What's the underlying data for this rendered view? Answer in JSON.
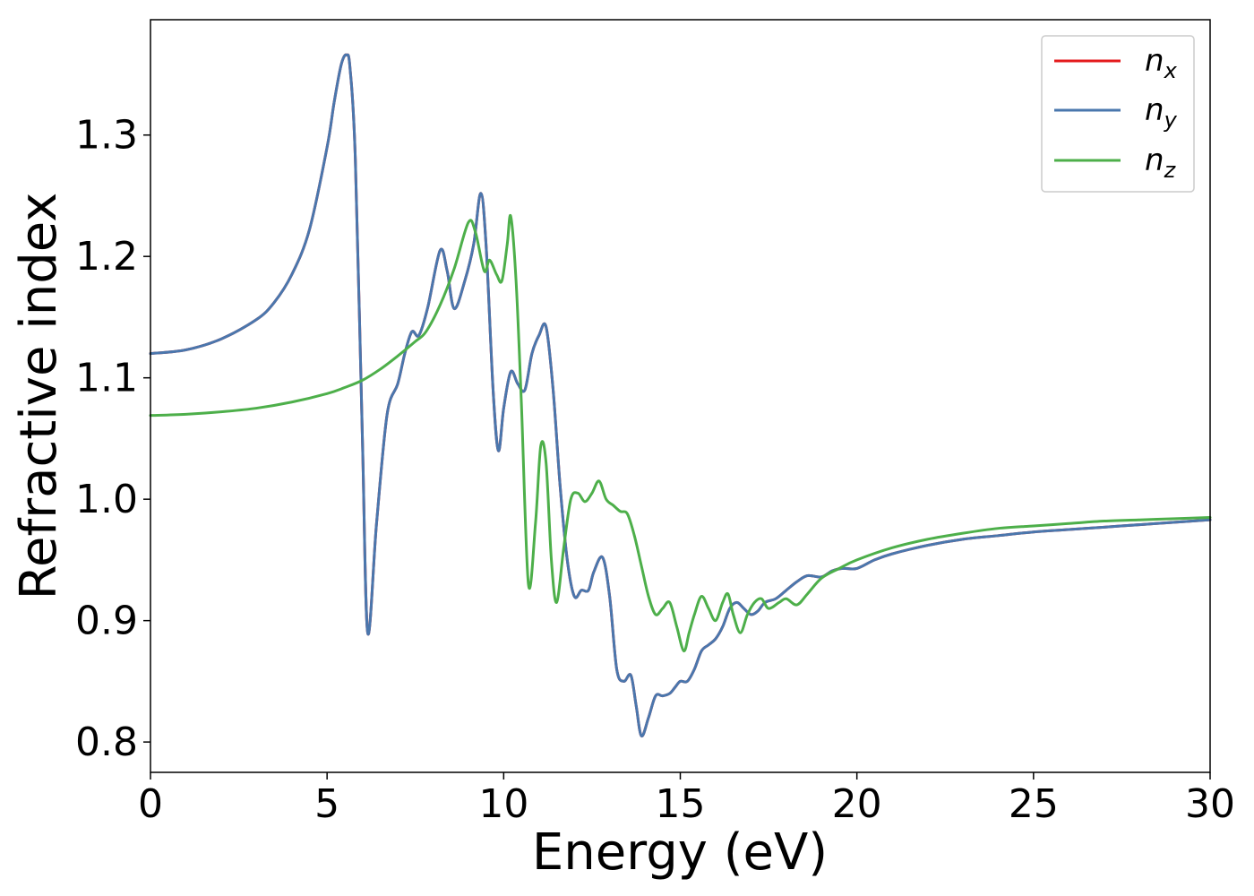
{
  "chart_data": {
    "type": "line",
    "xlabel": "Energy (eV)",
    "ylabel": "Refractive index",
    "xlim": [
      0,
      30
    ],
    "ylim": [
      0.775,
      1.395
    ],
    "xticks": [
      0,
      5,
      10,
      15,
      20,
      25,
      30
    ],
    "yticks": [
      0.8,
      0.9,
      1.0,
      1.1,
      1.2,
      1.3
    ],
    "xtick_labels": [
      "0",
      "5",
      "10",
      "15",
      "20",
      "25",
      "30"
    ],
    "ytick_labels": [
      "0.8",
      "0.9",
      "1.0",
      "1.1",
      "1.2",
      "1.3"
    ],
    "grid": false,
    "legend": "top-right",
    "series": [
      {
        "name_base": "n",
        "name_sub": "x",
        "color": "#e41a1c",
        "x": [
          0,
          1,
          2,
          3,
          3.5,
          4,
          4.5,
          5,
          5.2,
          5.4,
          5.55,
          5.65,
          5.8,
          6.0,
          6.15,
          6.4,
          6.7,
          7.0,
          7.2,
          7.4,
          7.6,
          7.85,
          8.2,
          8.4,
          8.6,
          8.9,
          9.15,
          9.35,
          9.5,
          9.7,
          9.85,
          10.0,
          10.2,
          10.4,
          10.6,
          10.8,
          11.0,
          11.2,
          11.4,
          11.6,
          11.8,
          12.0,
          12.2,
          12.4,
          12.55,
          12.8,
          13.0,
          13.2,
          13.4,
          13.6,
          13.75,
          13.9,
          14.1,
          14.3,
          14.5,
          14.7,
          14.85,
          15.0,
          15.2,
          15.4,
          15.6,
          15.8,
          16.0,
          16.2,
          16.4,
          16.6,
          16.8,
          17.0,
          17.2,
          17.4,
          17.7,
          18.0,
          18.3,
          18.6,
          19.0,
          19.3,
          19.6,
          20.0,
          20.5,
          21,
          22,
          23,
          24,
          25,
          26,
          27,
          28,
          29,
          30
        ],
        "y": [
          1.12,
          1.123,
          1.132,
          1.148,
          1.162,
          1.185,
          1.222,
          1.29,
          1.327,
          1.358,
          1.366,
          1.355,
          1.28,
          1.05,
          0.89,
          0.98,
          1.07,
          1.095,
          1.12,
          1.138,
          1.135,
          1.158,
          1.205,
          1.188,
          1.157,
          1.18,
          1.21,
          1.252,
          1.21,
          1.09,
          1.04,
          1.075,
          1.105,
          1.095,
          1.09,
          1.12,
          1.135,
          1.142,
          1.09,
          1.01,
          0.95,
          0.92,
          0.925,
          0.925,
          0.94,
          0.952,
          0.92,
          0.86,
          0.85,
          0.855,
          0.83,
          0.805,
          0.82,
          0.838,
          0.838,
          0.84,
          0.845,
          0.85,
          0.85,
          0.86,
          0.875,
          0.88,
          0.885,
          0.895,
          0.91,
          0.915,
          0.91,
          0.905,
          0.908,
          0.915,
          0.918,
          0.925,
          0.932,
          0.937,
          0.936,
          0.941,
          0.943,
          0.943,
          0.95,
          0.955,
          0.962,
          0.967,
          0.97,
          0.973,
          0.975,
          0.977,
          0.979,
          0.981,
          0.983
        ]
      },
      {
        "name_base": "n",
        "name_sub": "y",
        "color": "#4a77ad",
        "x": [
          0,
          1,
          2,
          3,
          3.5,
          4,
          4.5,
          5,
          5.2,
          5.4,
          5.55,
          5.65,
          5.8,
          6.0,
          6.15,
          6.4,
          6.7,
          7.0,
          7.2,
          7.4,
          7.6,
          7.85,
          8.2,
          8.4,
          8.6,
          8.9,
          9.15,
          9.35,
          9.5,
          9.7,
          9.85,
          10.0,
          10.2,
          10.4,
          10.6,
          10.8,
          11.0,
          11.2,
          11.4,
          11.6,
          11.8,
          12.0,
          12.2,
          12.4,
          12.55,
          12.8,
          13.0,
          13.2,
          13.4,
          13.6,
          13.75,
          13.9,
          14.1,
          14.3,
          14.5,
          14.7,
          14.85,
          15.0,
          15.2,
          15.4,
          15.6,
          15.8,
          16.0,
          16.2,
          16.4,
          16.6,
          16.8,
          17.0,
          17.2,
          17.4,
          17.7,
          18.0,
          18.3,
          18.6,
          19.0,
          19.3,
          19.6,
          20.0,
          20.5,
          21,
          22,
          23,
          24,
          25,
          26,
          27,
          28,
          29,
          30
        ],
        "y": [
          1.12,
          1.123,
          1.132,
          1.148,
          1.162,
          1.185,
          1.222,
          1.29,
          1.327,
          1.358,
          1.366,
          1.355,
          1.28,
          1.05,
          0.89,
          0.98,
          1.07,
          1.095,
          1.12,
          1.138,
          1.135,
          1.158,
          1.205,
          1.188,
          1.157,
          1.18,
          1.21,
          1.252,
          1.21,
          1.09,
          1.04,
          1.075,
          1.105,
          1.095,
          1.09,
          1.12,
          1.135,
          1.142,
          1.09,
          1.01,
          0.95,
          0.92,
          0.925,
          0.925,
          0.94,
          0.952,
          0.92,
          0.86,
          0.85,
          0.855,
          0.83,
          0.805,
          0.82,
          0.838,
          0.838,
          0.84,
          0.845,
          0.85,
          0.85,
          0.86,
          0.875,
          0.88,
          0.885,
          0.895,
          0.91,
          0.915,
          0.91,
          0.905,
          0.908,
          0.915,
          0.918,
          0.925,
          0.932,
          0.937,
          0.936,
          0.941,
          0.943,
          0.943,
          0.95,
          0.955,
          0.962,
          0.967,
          0.97,
          0.973,
          0.975,
          0.977,
          0.979,
          0.981,
          0.983
        ]
      },
      {
        "name_base": "n",
        "name_sub": "z",
        "color": "#4daf4a",
        "x": [
          0,
          1,
          2,
          3,
          4,
          5,
          5.5,
          6,
          6.5,
          7,
          7.5,
          7.8,
          8.2,
          8.6,
          9.0,
          9.2,
          9.45,
          9.6,
          9.8,
          9.95,
          10.1,
          10.2,
          10.35,
          10.5,
          10.7,
          10.9,
          11.05,
          11.2,
          11.35,
          11.5,
          11.7,
          11.9,
          12.1,
          12.3,
          12.5,
          12.7,
          12.9,
          13.1,
          13.3,
          13.5,
          13.7,
          13.9,
          14.1,
          14.3,
          14.5,
          14.7,
          14.9,
          15.1,
          15.25,
          15.4,
          15.6,
          15.8,
          16.0,
          16.2,
          16.35,
          16.5,
          16.7,
          16.9,
          17.1,
          17.3,
          17.5,
          17.8,
          18.0,
          18.3,
          18.6,
          19.0,
          19.5,
          20,
          21,
          22,
          23,
          24,
          25,
          26,
          27,
          28,
          29,
          30
        ],
        "y": [
          1.069,
          1.07,
          1.072,
          1.075,
          1.08,
          1.087,
          1.092,
          1.098,
          1.107,
          1.118,
          1.13,
          1.138,
          1.16,
          1.19,
          1.228,
          1.22,
          1.188,
          1.197,
          1.185,
          1.18,
          1.21,
          1.233,
          1.18,
          1.08,
          0.93,
          0.98,
          1.044,
          1.03,
          0.95,
          0.915,
          0.96,
          1.0,
          1.005,
          0.998,
          1.005,
          1.015,
          1.0,
          0.995,
          0.99,
          0.988,
          0.97,
          0.945,
          0.92,
          0.905,
          0.91,
          0.915,
          0.895,
          0.875,
          0.89,
          0.905,
          0.92,
          0.91,
          0.9,
          0.915,
          0.922,
          0.905,
          0.89,
          0.905,
          0.915,
          0.918,
          0.91,
          0.915,
          0.918,
          0.913,
          0.922,
          0.935,
          0.943,
          0.95,
          0.96,
          0.967,
          0.972,
          0.976,
          0.978,
          0.98,
          0.982,
          0.983,
          0.984,
          0.985
        ]
      }
    ]
  }
}
